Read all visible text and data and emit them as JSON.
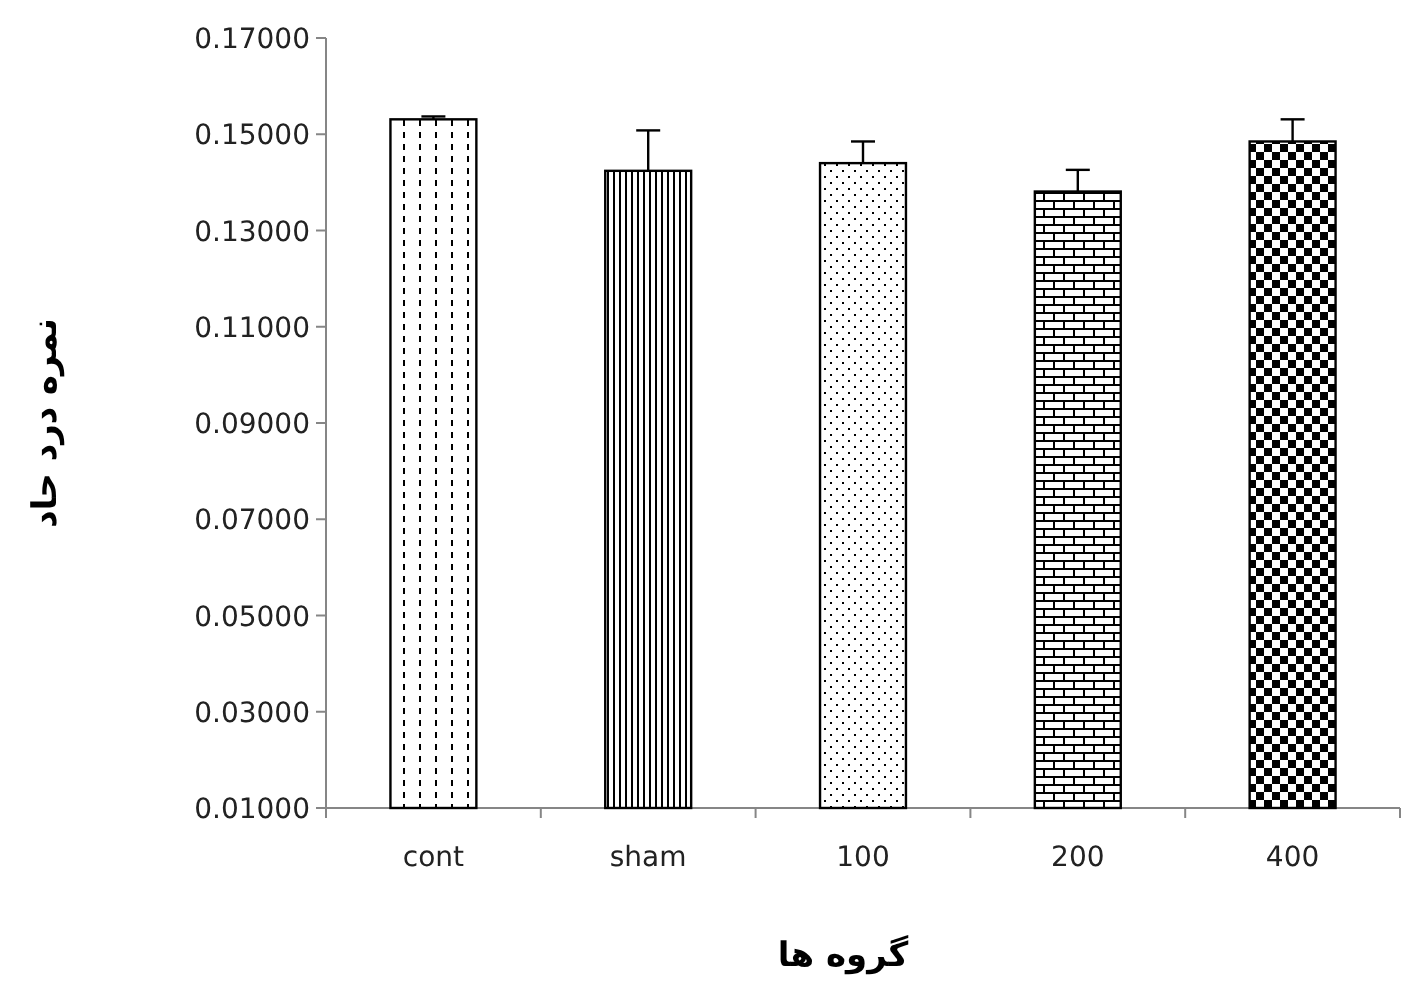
{
  "chart_data": {
    "type": "bar",
    "xlabel": "گروه ها",
    "ylabel": "نمره درد حاد",
    "categories": [
      "cont",
      "sham",
      "100",
      "200",
      "400"
    ],
    "values": [
      0.1531,
      0.1424,
      0.144,
      0.1381,
      0.1485
    ],
    "errors": [
      0.0006,
      0.0084,
      0.0045,
      0.0045,
      0.0046
    ],
    "color": "#000000",
    "ylim": [
      0.01,
      0.17
    ],
    "yticks": [
      {
        "value": 0.01,
        "label": "0.01000"
      },
      {
        "value": 0.03,
        "label": "0.03000"
      },
      {
        "value": 0.05,
        "label": "0.05000"
      },
      {
        "value": 0.07,
        "label": "0.07000"
      },
      {
        "value": 0.09,
        "label": "0.09000"
      },
      {
        "value": 0.11,
        "label": "0.11000"
      },
      {
        "value": 0.13,
        "label": "0.13000"
      },
      {
        "value": 0.15,
        "label": "0.15000"
      },
      {
        "value": 0.17,
        "label": "0.17000"
      }
    ],
    "grid": false
  }
}
